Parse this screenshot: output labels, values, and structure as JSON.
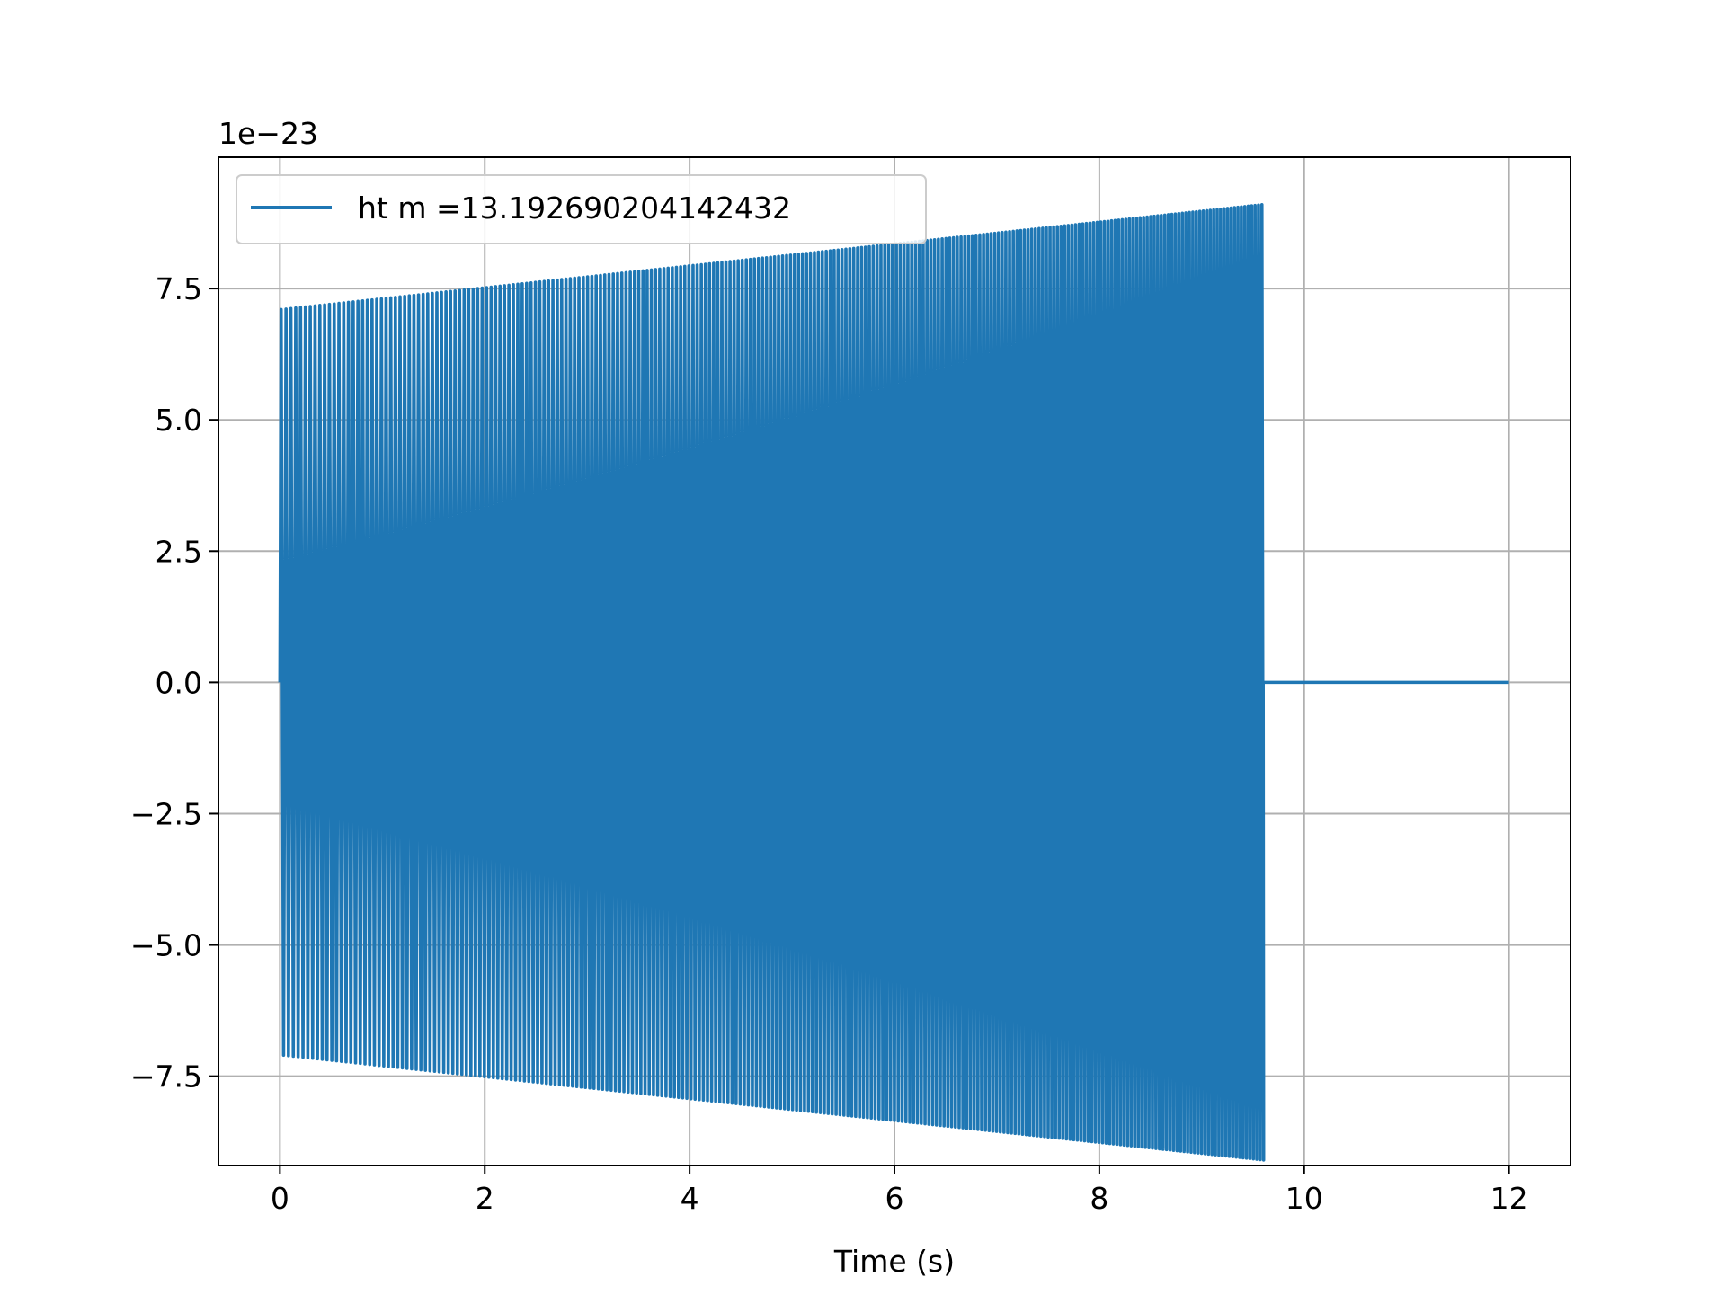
{
  "chart_data": {
    "type": "line",
    "xlabel": "Time (s)",
    "ylabel": "",
    "y_offset_label": "1e−23",
    "y_scale_factor": 1e-23,
    "xlim": [
      -0.6,
      12.6
    ],
    "ylim": [
      -9.2,
      10.0
    ],
    "x_ticks": [
      0,
      2,
      4,
      6,
      8,
      10,
      12
    ],
    "x_tick_labels": [
      "0",
      "2",
      "4",
      "6",
      "8",
      "10",
      "12"
    ],
    "y_ticks": [
      -7.5,
      -5.0,
      -2.5,
      0.0,
      2.5,
      5.0,
      7.5
    ],
    "y_tick_labels": [
      "−7.5",
      "−5.0",
      "−2.5",
      "0.0",
      "2.5",
      "5.0",
      "7.5"
    ],
    "grid": true,
    "legend_placement": "upper left",
    "series": [
      {
        "name": "ht m =13.192690204142432",
        "color": "#1f77b4",
        "signal": {
          "start_time": 0.0,
          "end_time": 9.6,
          "total_time": 12.0,
          "amplitude_start": 7.1,
          "amplitude_end": 9.1,
          "frequency_start_hz": 21,
          "frequency_end_hz": 30,
          "value_after_end": 0.0
        }
      }
    ]
  }
}
